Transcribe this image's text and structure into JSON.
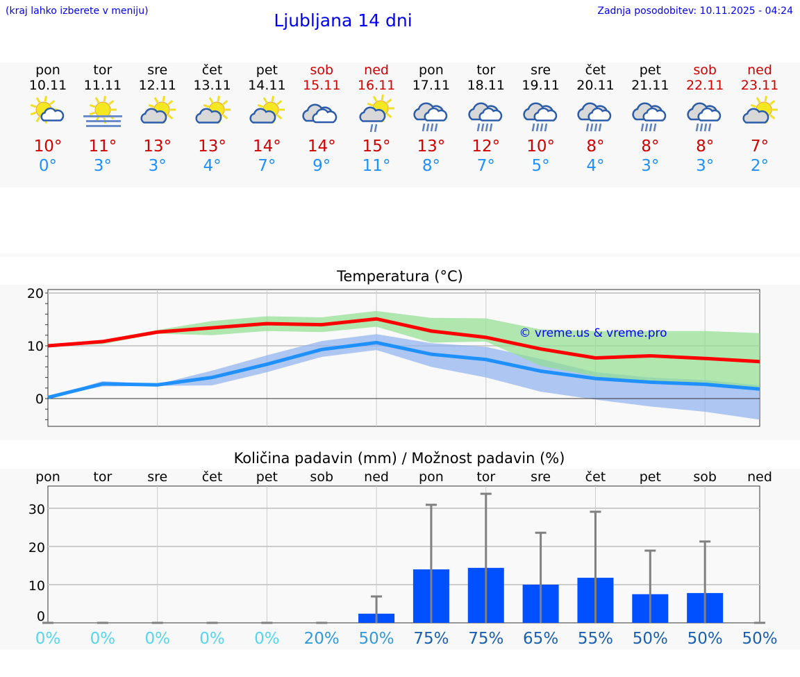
{
  "header": {
    "hint": "(kraj lahko izberete v meniju)",
    "title": "Ljubljana 14 dni",
    "updated": "Zadnja posodobitev: 10.11.2025 - 04:24"
  },
  "days": [
    {
      "name": "pon",
      "date": "10.11",
      "icon": "sun-cloud",
      "max": "10°",
      "min": "0°",
      "weekend": false
    },
    {
      "name": "tor",
      "date": "11.11",
      "icon": "fog-sun",
      "max": "11°",
      "min": "3°",
      "weekend": false
    },
    {
      "name": "sre",
      "date": "12.11",
      "icon": "partly-cloudy",
      "max": "13°",
      "min": "3°",
      "weekend": false
    },
    {
      "name": "čet",
      "date": "13.11",
      "icon": "partly-cloudy",
      "max": "13°",
      "min": "4°",
      "weekend": false
    },
    {
      "name": "pet",
      "date": "14.11",
      "icon": "partly-cloudy",
      "max": "14°",
      "min": "7°",
      "weekend": false
    },
    {
      "name": "sob",
      "date": "15.11",
      "icon": "cloudy",
      "max": "14°",
      "min": "9°",
      "weekend": true
    },
    {
      "name": "ned",
      "date": "16.11",
      "icon": "partly-cloudy-light-rain",
      "max": "15°",
      "min": "11°",
      "weekend": true
    },
    {
      "name": "pon",
      "date": "17.11",
      "icon": "cloudy-rain",
      "max": "13°",
      "min": "8°",
      "weekend": false
    },
    {
      "name": "tor",
      "date": "18.11",
      "icon": "cloudy-rain",
      "max": "12°",
      "min": "7°",
      "weekend": false
    },
    {
      "name": "sre",
      "date": "19.11",
      "icon": "cloudy-rain",
      "max": "10°",
      "min": "5°",
      "weekend": false
    },
    {
      "name": "čet",
      "date": "20.11",
      "icon": "cloudy-rain",
      "max": "8°",
      "min": "4°",
      "weekend": false
    },
    {
      "name": "pet",
      "date": "21.11",
      "icon": "cloudy-rain",
      "max": "8°",
      "min": "3°",
      "weekend": false
    },
    {
      "name": "sob",
      "date": "22.11",
      "icon": "cloudy-rain",
      "max": "8°",
      "min": "3°",
      "weekend": true
    },
    {
      "name": "ned",
      "date": "23.11",
      "icon": "partly-cloudy",
      "max": "7°",
      "min": "2°",
      "weekend": true
    }
  ],
  "colors": {
    "weekend": "#d00000",
    "weekday": "#000000",
    "max": "#d00000",
    "min": "#1e90ff",
    "max_band": "#90e090",
    "min_band": "#8fb0f0",
    "bar": "#0050ff",
    "whisker": "#808080"
  },
  "chart_data": [
    {
      "type": "line",
      "title": "Temperatura (°C)",
      "ylim": [
        -5.3,
        20.7
      ],
      "yticks": [
        "20",
        "10",
        "0"
      ],
      "grid": true,
      "watermark": "© vreme.us & vreme.pro",
      "x": [
        "10.11",
        "11.11",
        "12.11",
        "13.11",
        "14.11",
        "15.11",
        "16.11",
        "17.11",
        "18.11",
        "19.11",
        "20.11",
        "21.11",
        "22.11",
        "23.11"
      ],
      "series": [
        {
          "role": "max",
          "values": [
            10,
            10.8,
            12.6,
            13.4,
            14.2,
            14.0,
            15.1,
            12.8,
            11.6,
            9.4,
            7.7,
            8.1,
            7.6,
            7.0
          ],
          "band_upper": [
            10,
            11.1,
            13,
            14.7,
            15.6,
            15.4,
            16.6,
            15.3,
            15.2,
            13.1,
            12.8,
            12.8,
            12.8,
            12.4
          ],
          "band_lower": [
            10,
            10.3,
            12.3,
            12.0,
            12.8,
            12.6,
            13.6,
            10.6,
            10.8,
            6.2,
            4.2,
            3.0,
            2.5,
            2.0
          ]
        },
        {
          "role": "min",
          "values": [
            0.2,
            2.8,
            2.6,
            4.0,
            6.5,
            9.3,
            10.6,
            8.4,
            7.4,
            5.2,
            3.8,
            3.1,
            2.7,
            1.8
          ],
          "band_upper": [
            0.2,
            3.3,
            2.7,
            5.3,
            8.2,
            10.9,
            12.2,
            10.5,
            9.8,
            7.5,
            5.0,
            4.0,
            3.5,
            2.5
          ],
          "band_lower": [
            0.2,
            2.3,
            2.4,
            2.5,
            5.0,
            7.9,
            9.2,
            6.0,
            4.0,
            1.3,
            -0.2,
            -1.5,
            -2.5,
            -4.0
          ]
        }
      ]
    },
    {
      "type": "bar",
      "title": "Količina padavin (mm) / Možnost padavin (%)",
      "ylim": [
        0,
        35.8
      ],
      "yticks": [
        "30",
        "20",
        "10",
        "0"
      ],
      "grid": true,
      "categories": [
        "pon",
        "tor",
        "sre",
        "čet",
        "pet",
        "sob",
        "ned",
        "pon",
        "tor",
        "sre",
        "čet",
        "pet",
        "sob",
        "ned"
      ],
      "values": [
        0,
        0,
        0,
        0,
        0,
        0,
        2.4,
        14.0,
        14.4,
        10.0,
        11.8,
        7.5,
        7.8,
        0
      ],
      "error_upper": [
        0,
        0,
        0,
        0,
        0,
        0,
        6.9,
        30.9,
        33.8,
        23.6,
        29.1,
        18.9,
        21.3,
        0
      ],
      "probability": [
        "0%",
        "0%",
        "0%",
        "0%",
        "0%",
        "20%",
        "50%",
        "75%",
        "75%",
        "65%",
        "55%",
        "50%",
        "50%",
        "50%"
      ],
      "probability_colors": [
        "#55d6ee",
        "#55d6ee",
        "#55d6ee",
        "#55d6ee",
        "#55d6ee",
        "#3399dd",
        "#3399dd",
        "#1b5fb0",
        "#1b5fb0",
        "#1b5fb0",
        "#1b5fb0",
        "#1b5fb0",
        "#1b5fb0",
        "#1b5fb0"
      ]
    }
  ]
}
